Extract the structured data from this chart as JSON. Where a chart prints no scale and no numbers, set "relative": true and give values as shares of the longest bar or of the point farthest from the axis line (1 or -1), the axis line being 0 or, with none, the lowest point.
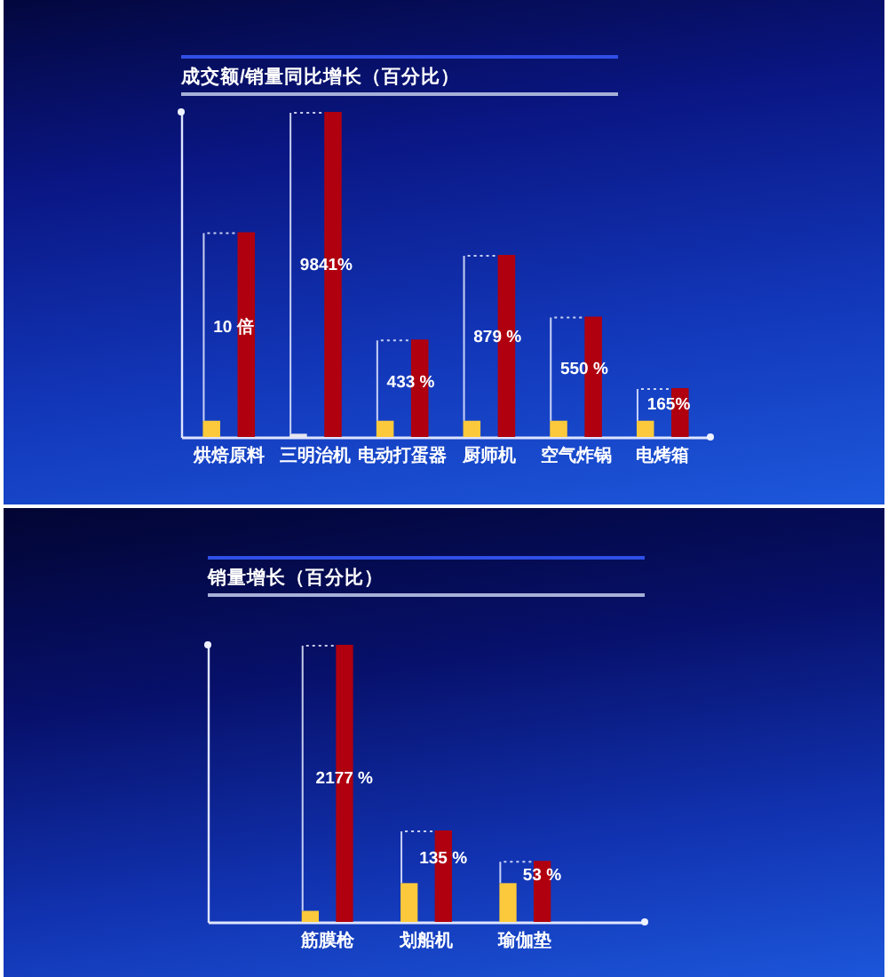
{
  "chart_data": [
    {
      "type": "bar",
      "title": "成交额/销量同比增长（百分比）",
      "relative": true,
      "categories": [
        "烘焙原料",
        "三明治机",
        "电动打蛋器",
        "厨师机",
        "空气炸锅",
        "电烤箱"
      ],
      "series": [
        {
          "colors": [
            "#fcc93c",
            "#e6e6ee",
            "#fcc93c",
            "#fcc93c",
            "#fcc93c",
            "#fcc93c"
          ],
          "values": [
            0.05,
            0.01,
            0.05,
            0.05,
            0.05,
            0.05
          ]
        },
        {
          "color": "#b0000f",
          "values": [
            0.63,
            1,
            0.3,
            0.56,
            0.37,
            0.15
          ]
        }
      ],
      "annotations": [
        {
          "text": "10 倍",
          "x": "烘焙原料",
          "y": 0.34
        },
        {
          "text": "9841%",
          "x": "三明治机",
          "y": 0.53
        },
        {
          "text": "433 %",
          "x": "电动打蛋器",
          "y": 0.17
        },
        {
          "text": "879 %",
          "x": "厨师机",
          "y": 0.31
        },
        {
          "text": "550 %",
          "x": "空气炸锅",
          "y": 0.21
        },
        {
          "text": "165%",
          "x": "电烤箱",
          "y": 0.1
        }
      ]
    },
    {
      "type": "bar",
      "title": "销量增长（百分比）",
      "relative": true,
      "categories": [
        "筋膜枪",
        "划船机",
        "瑜伽垫"
      ],
      "series": [
        {
          "color": "#fcc93c",
          "values": [
            0.04,
            0.14,
            0.14
          ]
        },
        {
          "color": "#b0000f",
          "values": [
            1,
            0.33,
            0.22
          ]
        }
      ],
      "annotations": [
        {
          "text": "2177 %",
          "x": "筋膜枪",
          "y": 0.52
        },
        {
          "text": "135 %",
          "x": "划船机",
          "y": 0.23
        },
        {
          "text": "53 %",
          "x": "瑜伽垫",
          "y": 0.17
        }
      ]
    }
  ]
}
